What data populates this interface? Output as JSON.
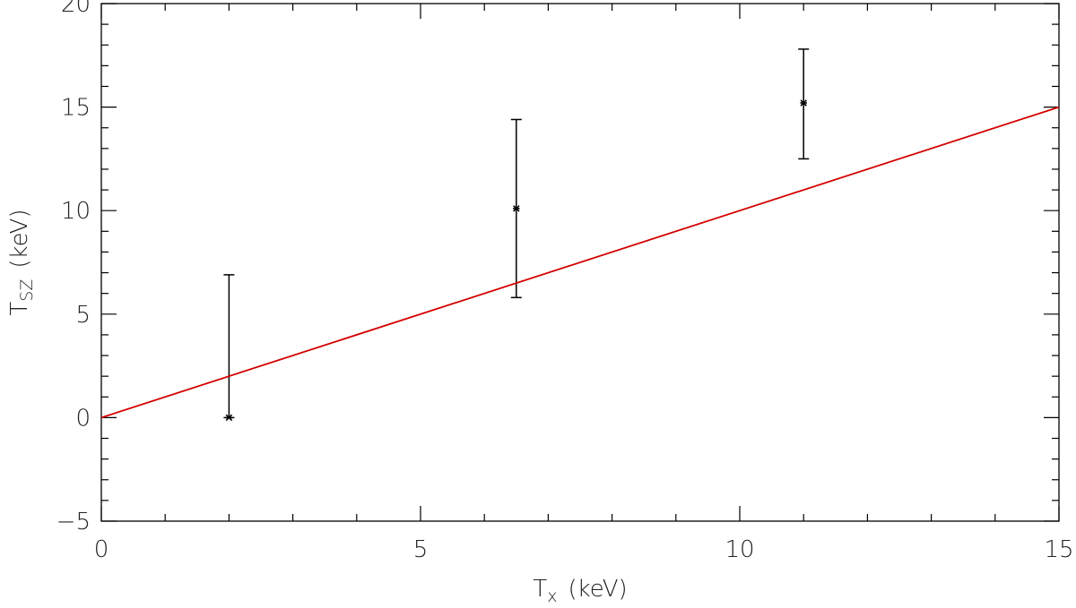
{
  "chart_data": {
    "type": "scatter",
    "title": "",
    "xlabel": {
      "main": "T",
      "sub": "x",
      "unit": "(keV)"
    },
    "ylabel": {
      "main": "T",
      "sub": "SZ",
      "unit": "(keV)"
    },
    "xlim": [
      0,
      15
    ],
    "ylim": [
      -5,
      20
    ],
    "xticks": [
      0,
      5,
      10,
      15
    ],
    "yticks": [
      -5,
      0,
      5,
      10,
      15,
      20
    ],
    "x_minor_step": 1,
    "y_minor_step": 1,
    "grid": false,
    "series": [
      {
        "kind": "points_with_errorbars",
        "color": "#000000",
        "points": [
          {
            "x": 2.0,
            "y": 0.0,
            "y_low": 0.0,
            "y_high": 6.9
          },
          {
            "x": 6.5,
            "y": 10.1,
            "y_low": 5.8,
            "y_high": 14.4
          },
          {
            "x": 11.0,
            "y": 15.2,
            "y_low": 12.5,
            "y_high": 17.8
          }
        ]
      },
      {
        "kind": "line",
        "color": "#d40000",
        "points": [
          {
            "x": 0,
            "y": 0
          },
          {
            "x": 15,
            "y": 15
          }
        ]
      }
    ]
  }
}
